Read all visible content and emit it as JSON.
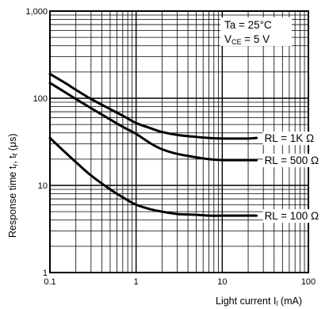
{
  "chart_data": {
    "type": "line",
    "xlabel_main": "Light current I",
    "xlabel_sub": "l",
    "xlabel_unit": " (mA)",
    "ylabel_main": "Response time t",
    "ylabel_sub": "r",
    "ylabel_mid": ", t",
    "ylabel_sub2": "f",
    "ylabel_unit": " (μs)",
    "x_scale": "log",
    "y_scale": "log",
    "xlim": [
      0.1,
      100
    ],
    "ylim": [
      1,
      1000
    ],
    "x_ticks": [
      {
        "value": 0.1,
        "label": "0.1"
      },
      {
        "value": 1,
        "label": "1"
      },
      {
        "value": 10,
        "label": "10"
      },
      {
        "value": 100,
        "label": "100"
      }
    ],
    "y_ticks": [
      {
        "value": 1,
        "label": "1"
      },
      {
        "value": 10,
        "label": "10"
      },
      {
        "value": 100,
        "label": "100"
      },
      {
        "value": 1000,
        "label": "1,000"
      }
    ],
    "grid": true,
    "conditions": {
      "line1": "Ta = 25°C",
      "line2_main": "V",
      "line2_sub": "CE",
      "line2_rest": " = 5 V"
    },
    "series": [
      {
        "name": "RL = 1K Ω",
        "x": [
          0.1,
          0.15,
          0.2,
          0.3,
          0.5,
          0.7,
          1,
          1.5,
          2,
          3,
          5,
          7,
          10,
          15,
          20,
          25
        ],
        "y": [
          190,
          150,
          125,
          98,
          75,
          63,
          52,
          45,
          41,
          38,
          36,
          35,
          34.5,
          34.5,
          34.5,
          35
        ]
      },
      {
        "name": "RL = 500 Ω",
        "x": [
          0.1,
          0.15,
          0.2,
          0.3,
          0.5,
          0.7,
          1,
          1.5,
          2,
          3,
          5,
          7,
          10,
          15,
          20,
          25
        ],
        "y": [
          150,
          117,
          98,
          77,
          57,
          47,
          39,
          30,
          26,
          23,
          21,
          20,
          19.5,
          19.5,
          19.5,
          19.5
        ]
      },
      {
        "name": "RL = 100 Ω",
        "x": [
          0.1,
          0.15,
          0.2,
          0.3,
          0.5,
          0.7,
          1,
          1.5,
          2,
          3,
          5,
          7,
          10,
          15,
          20,
          25
        ],
        "y": [
          35,
          24,
          18.5,
          13,
          9,
          7.3,
          6,
          5.3,
          5,
          4.7,
          4.6,
          4.5,
          4.5,
          4.5,
          4.5,
          4.5
        ]
      }
    ],
    "colors": {
      "line": "#000000",
      "grid": "#000000",
      "background": "#ffffff"
    }
  }
}
